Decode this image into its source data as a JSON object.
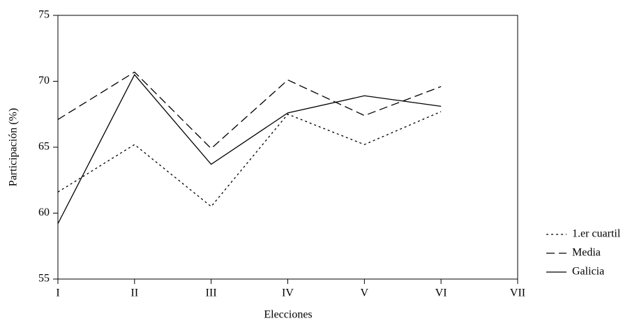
{
  "chart_data": {
    "type": "line",
    "x_label": "Elecciones",
    "y_label": "Participación (%)",
    "categories": [
      "I",
      "II",
      "III",
      "IV",
      "V",
      "VI",
      "VII"
    ],
    "series": [
      {
        "name": "1.er cuartil",
        "color": "#000000",
        "dash": "3,4",
        "values": [
          61.6,
          65.2,
          60.5,
          67.5,
          65.2,
          67.7,
          null
        ]
      },
      {
        "name": "Media",
        "color": "#000000",
        "dash": "12,6",
        "values": [
          67.1,
          70.7,
          64.9,
          70.1,
          67.4,
          69.6,
          null
        ]
      },
      {
        "name": "Galicia",
        "color": "#000000",
        "dash": "none",
        "values": [
          59.2,
          70.5,
          63.7,
          67.6,
          68.9,
          68.1,
          null
        ]
      }
    ],
    "ylim": [
      55,
      75
    ],
    "yticks": [
      55,
      60,
      65,
      70,
      75
    ],
    "legend": "right"
  }
}
